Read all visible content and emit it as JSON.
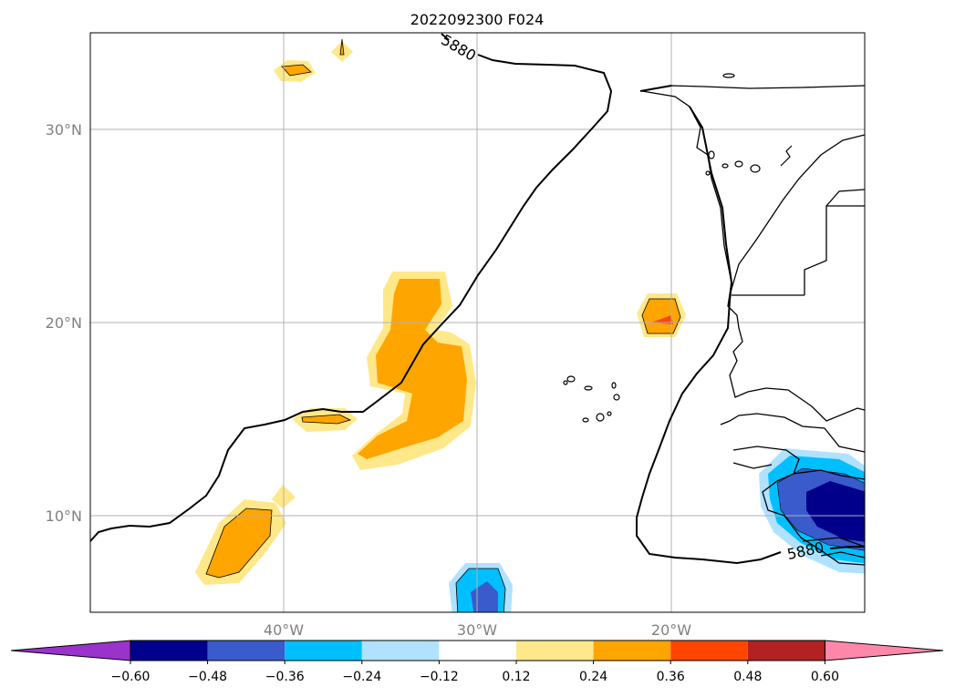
{
  "title": "2022092300 F024",
  "map": {
    "lat_ticks": [
      "30°N",
      "20°N",
      "10°N"
    ],
    "lon_ticks": [
      "40°W",
      "30°W",
      "20°W"
    ],
    "contour_label": "5880",
    "gridlines": true
  },
  "colorbar": {
    "levels": [
      "−0.60",
      "−0.48",
      "−0.36",
      "−0.24",
      "−0.12",
      "0.12",
      "0.24",
      "0.36",
      "0.48",
      "0.60"
    ],
    "colors": [
      "#9933cc",
      "#00008b",
      "#3a5bcc",
      "#00bfff",
      "#b0e2ff",
      "#ffffff",
      "#ffe88a",
      "#ffa500",
      "#ff4500",
      "#b22222",
      "#ff88aa"
    ],
    "extend": "both"
  },
  "colors": {
    "land_line": "#000000",
    "grid": "#b0b0b0"
  }
}
